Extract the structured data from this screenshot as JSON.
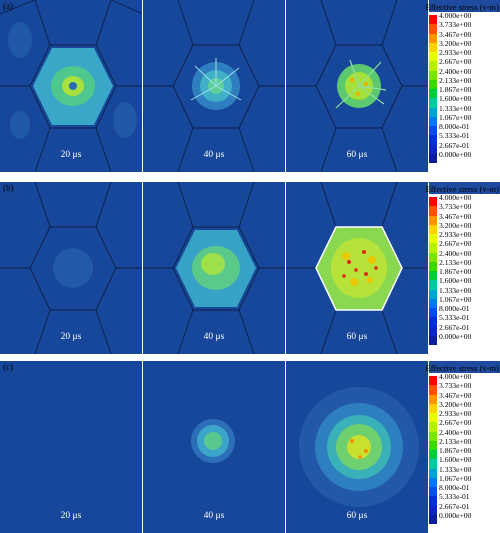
{
  "figure": {
    "legend_title": "Effective stress (v-m)",
    "legend_ticks": [
      "4.000e+00",
      "3.733e+00",
      "3.467e+00",
      "3.200e+00",
      "2.933e+00",
      "2.667e+00",
      "2.400e+00",
      "2.133e+00",
      "1.867e+00",
      "1.600e+00",
      "1.333e+00",
      "1.067e+00",
      "8.000e-01",
      "5.333e-01",
      "2.667e-01",
      "0.000e+00"
    ],
    "legend_colors": [
      "#ff0000",
      "#ff5000",
      "#ff9600",
      "#ffd200",
      "#e6ff00",
      "#b4f000",
      "#78e600",
      "#3cd700",
      "#00c83c",
      "#00c8a0",
      "#00a0d2",
      "#0078e6",
      "#0050dc",
      "#0032c8",
      "#0a28b4",
      "#0a1e9c"
    ],
    "panel_background": "#17479a",
    "rows": [
      {
        "label": "(a)",
        "times": [
          "20 μs",
          "40 μs",
          "60 μs"
        ]
      },
      {
        "label": "(b)",
        "times": [
          "20 μs",
          "40 μs",
          "60 μs"
        ]
      },
      {
        "label": "(c)",
        "times": [
          "20 μs",
          "40 μs",
          "60 μs"
        ]
      }
    ]
  }
}
